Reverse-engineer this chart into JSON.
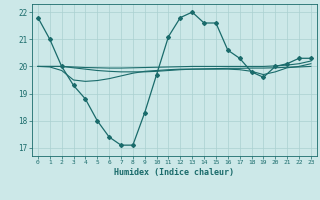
{
  "xlabel": "Humidex (Indice chaleur)",
  "background_color": "#cce8e8",
  "grid_color": "#aad0d0",
  "line_color": "#1a6b6b",
  "xlim": [
    -0.5,
    23.5
  ],
  "ylim": [
    16.7,
    22.3
  ],
  "yticks": [
    17,
    18,
    19,
    20,
    21,
    22
  ],
  "xticks": [
    0,
    1,
    2,
    3,
    4,
    5,
    6,
    7,
    8,
    9,
    10,
    11,
    12,
    13,
    14,
    15,
    16,
    17,
    18,
    19,
    20,
    21,
    22,
    23
  ],
  "series": [
    {
      "y": [
        21.8,
        21.0,
        20.0,
        19.3,
        18.8,
        18.0,
        17.4,
        17.1,
        17.1,
        18.3,
        19.7,
        21.1,
        21.8,
        22.0,
        21.6,
        21.6,
        20.6,
        20.3,
        19.8,
        19.6,
        20.0,
        20.1,
        20.3,
        20.3
      ],
      "marker": "D",
      "markersize": 2.0,
      "linewidth": 0.9
    },
    {
      "y": [
        20.0,
        20.0,
        20.0,
        19.95,
        19.9,
        19.85,
        19.82,
        19.8,
        19.8,
        19.8,
        19.82,
        19.85,
        19.88,
        19.9,
        19.91,
        19.92,
        19.93,
        19.93,
        19.94,
        19.94,
        19.95,
        19.97,
        19.98,
        20.0
      ],
      "marker": null,
      "markersize": 0,
      "linewidth": 0.8
    },
    {
      "y": [
        20.0,
        20.0,
        20.0,
        19.98,
        19.96,
        19.95,
        19.94,
        19.94,
        19.95,
        19.96,
        19.97,
        19.98,
        19.99,
        20.0,
        20.0,
        20.0,
        20.0,
        20.0,
        20.0,
        20.0,
        20.02,
        20.05,
        20.1,
        20.2
      ],
      "marker": null,
      "markersize": 0,
      "linewidth": 0.8
    },
    {
      "y": [
        20.0,
        19.98,
        19.85,
        19.5,
        19.45,
        19.48,
        19.55,
        19.65,
        19.75,
        19.82,
        19.85,
        19.88,
        19.9,
        19.9,
        19.9,
        19.9,
        19.9,
        19.88,
        19.82,
        19.7,
        19.8,
        19.95,
        20.0,
        20.1
      ],
      "marker": null,
      "markersize": 0,
      "linewidth": 0.8
    }
  ]
}
